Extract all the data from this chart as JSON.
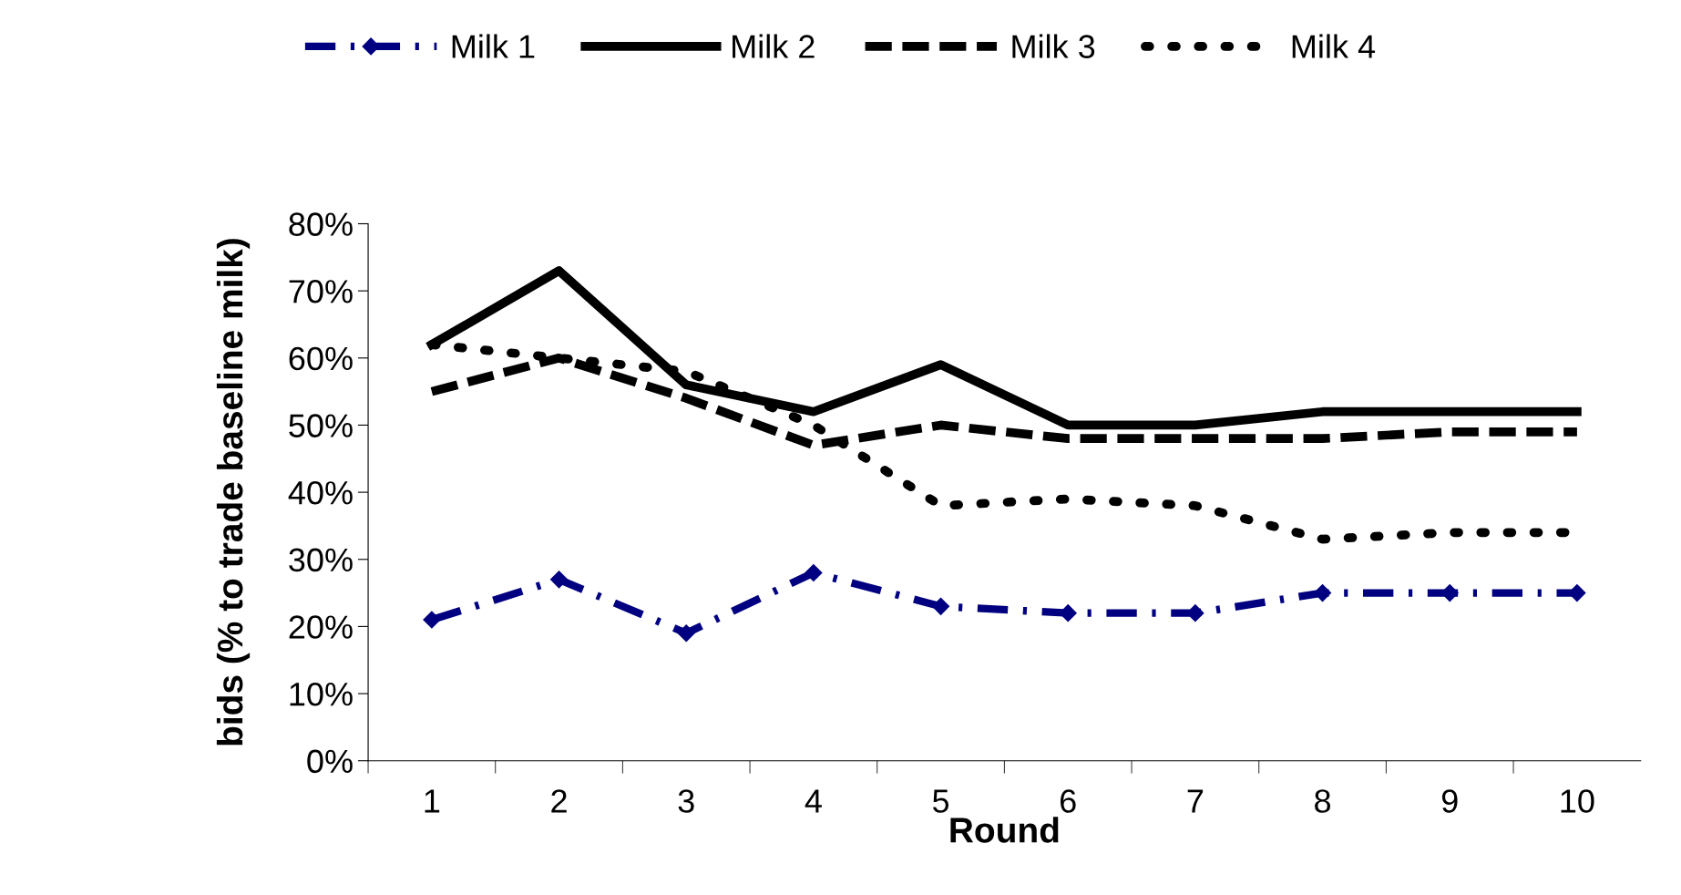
{
  "chart_data": {
    "type": "line",
    "xlabel": "Round",
    "ylabel": "bids (% to trade baseline milk)",
    "categories": [
      "1",
      "2",
      "3",
      "4",
      "5",
      "6",
      "7",
      "8",
      "9",
      "10"
    ],
    "series": [
      {
        "name": "Milk 1",
        "color": "#000080",
        "line_style": "dashdot",
        "marker": "diamond",
        "values": [
          21,
          27,
          19,
          28,
          23,
          22,
          22,
          25,
          25,
          25
        ]
      },
      {
        "name": "Milk 2",
        "color": "#000000",
        "line_style": "solid",
        "marker": "none",
        "values": [
          62,
          73,
          56,
          52,
          59,
          50,
          50,
          52,
          52,
          52
        ]
      },
      {
        "name": "Milk 3",
        "color": "#000000",
        "line_style": "dashed",
        "marker": "none",
        "values": [
          55,
          60,
          54,
          47,
          50,
          48,
          48,
          48,
          49,
          49
        ]
      },
      {
        "name": "Milk 4",
        "color": "#000000",
        "line_style": "dotted",
        "marker": "none",
        "values": [
          62,
          60,
          58,
          50,
          38,
          39,
          38,
          33,
          34,
          34
        ]
      }
    ],
    "ylim": [
      0,
      80
    ],
    "yticks": [
      {
        "value": 0,
        "label": "0%"
      },
      {
        "value": 10,
        "label": "10%"
      },
      {
        "value": 20,
        "label": "20%"
      },
      {
        "value": 30,
        "label": "30%"
      },
      {
        "value": 40,
        "label": "40%"
      },
      {
        "value": 50,
        "label": "50%"
      },
      {
        "value": 60,
        "label": "60%"
      },
      {
        "value": 70,
        "label": "70%"
      },
      {
        "value": 80,
        "label": "80%"
      }
    ],
    "grid": false,
    "legend": "top"
  }
}
